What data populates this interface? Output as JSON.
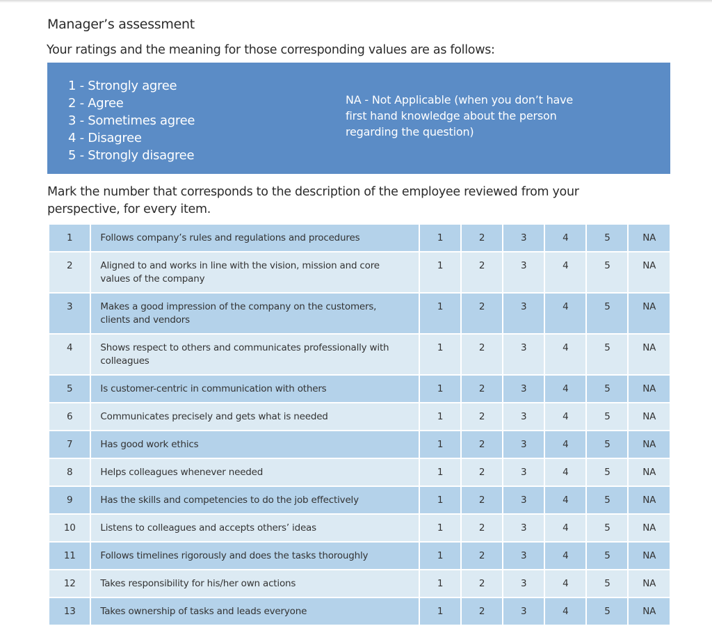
{
  "title": "Manager’s assessment",
  "intro": "Your ratings and the meaning for those corresponding values are as follows:",
  "legend": {
    "scale": [
      "1 - Strongly agree",
      "2 - Agree",
      "3 - Sometimes agree",
      "4 - Disagree",
      "5 - Strongly disagree"
    ],
    "na": "NA - Not Applicable (when you don’t have first hand knowledge about the person regarding the question)"
  },
  "instruction": "Mark the number that corresponds to the description of the employee reviewed from your perspective, for every item.",
  "options": [
    "1",
    "2",
    "3",
    "4",
    "5",
    "NA"
  ],
  "items": [
    {
      "num": "1",
      "text": "Follows company’s rules and regulations and procedures"
    },
    {
      "num": "2",
      "text": "Aligned to and works in line with the vision, mission and core values of the company"
    },
    {
      "num": "3",
      "text": "Makes a good impression of the company on the customers, clients and vendors"
    },
    {
      "num": "4",
      "text": "Shows respect to others and communicates professionally with colleagues"
    },
    {
      "num": "5",
      "text": "Is customer-centric in communication with others"
    },
    {
      "num": "6",
      "text": "Communicates precisely and gets what is needed"
    },
    {
      "num": "7",
      "text": "Has good work ethics"
    },
    {
      "num": "8",
      "text": "Helps colleagues whenever needed"
    },
    {
      "num": "9",
      "text": "Has the skills and competencies to do the job effectively"
    },
    {
      "num": "10",
      "text": "Listens to colleagues and accepts others’ ideas"
    },
    {
      "num": "11",
      "text": "Follows timelines rigorously and does the tasks thoroughly"
    },
    {
      "num": "12",
      "text": "Takes responsibility for his/her own actions"
    },
    {
      "num": "13",
      "text": "Takes ownership of tasks and leads everyone"
    }
  ],
  "colors": {
    "legend_bg": "#5b8cc6",
    "row_dark": "#b4d2ea",
    "row_light": "#dceaf3"
  }
}
